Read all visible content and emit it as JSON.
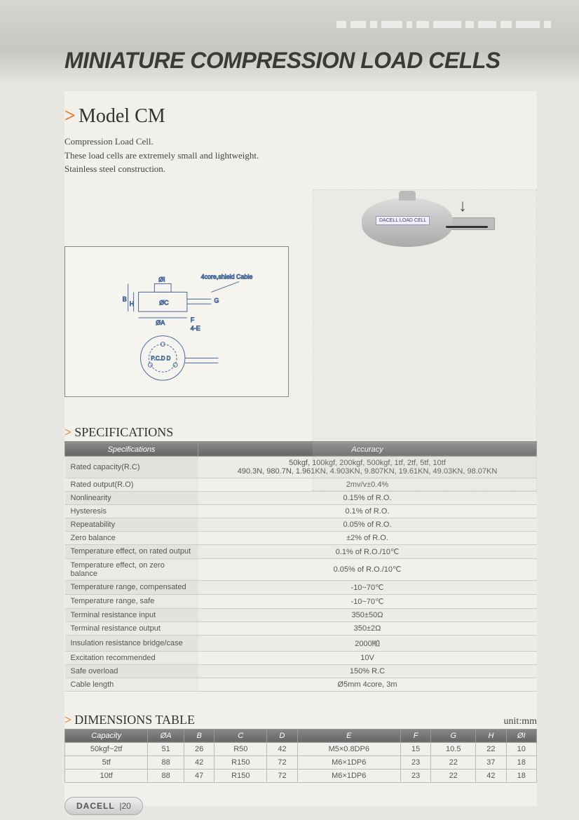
{
  "page_title": "MINIATURE COMPRESSION LOAD CELLS",
  "model": {
    "name": "Model CM",
    "desc_lines": [
      "Compression Load Cell.",
      "These load cells are extremely small and lightweight.",
      "Stainless steel construction."
    ]
  },
  "diagram": {
    "cable_label": "4core,shield Cable",
    "labels": [
      "ØI",
      "B",
      "H",
      "ØC",
      "G",
      "ØA",
      "F",
      "4-E",
      "P.C.D D"
    ]
  },
  "product_label": "DACELL  LOAD CELL",
  "spec_section_title": "SPECIFICATIONS",
  "spec_headers": [
    "Specifications",
    "Accuracy"
  ],
  "spec_rows": [
    {
      "label": "Rated capacity(R.C)",
      "value_lines": [
        "50kgf, 100kgf, 200kgf, 500kgf, 1tf, 2tf, 5tf, 10tf",
        "490.3N, 980.7N, 1.961KN, 4.903KN, 9.807KN, 19.61KN, 49.03KN, 98.07KN"
      ]
    },
    {
      "label": "Rated output(R.O)",
      "value": "2mv/v±0.4%"
    },
    {
      "label": "Nonlinearity",
      "value": "0.15% of R.O."
    },
    {
      "label": "Hysteresis",
      "value": "0.1% of R.O."
    },
    {
      "label": "Repeatability",
      "value": "0.05% of R.O."
    },
    {
      "label": "Zero balance",
      "value": "±2% of R.O."
    },
    {
      "label": "Temperature effect, on rated output",
      "value": "0.1% of R.O./10℃"
    },
    {
      "label": "Temperature effect, on zero balance",
      "value": "0.05% of R.O./10℃"
    },
    {
      "label": "Temperature range, compensated",
      "value": "-10~70℃"
    },
    {
      "label": "Temperature range, safe",
      "value": "-10~70℃"
    },
    {
      "label": "Terminal resistance input",
      "value": "350±50Ω"
    },
    {
      "label": "Terminal resistance output",
      "value": "350±2Ω"
    },
    {
      "label": "Insulation resistance bridge/case",
      "value": "2000㏁"
    },
    {
      "label": "Excitation recommended",
      "value": "10V"
    },
    {
      "label": "Safe overload",
      "value": "150% R.C"
    },
    {
      "label": "Cable length",
      "value": "Ø5mm 4core, 3m"
    }
  ],
  "dim_section_title": "DIMENSIONS TABLE",
  "dim_unit": "unit:mm",
  "dim_headers": [
    "Capacity",
    "ØA",
    "B",
    "C",
    "D",
    "E",
    "F",
    "G",
    "H",
    "ØI"
  ],
  "dim_rows": [
    [
      "50kgf~2tf",
      "51",
      "26",
      "R50",
      "42",
      "M5×0.8DP6",
      "15",
      "10.5",
      "22",
      "10"
    ],
    [
      "5tf",
      "88",
      "42",
      "R150",
      "72",
      "M6×1DP6",
      "23",
      "22",
      "37",
      "18"
    ],
    [
      "10tf",
      "88",
      "47",
      "R150",
      "72",
      "M6×1DP6",
      "23",
      "22",
      "42",
      "18"
    ]
  ],
  "footer": {
    "brand": "DACELL",
    "page": "20"
  },
  "colors": {
    "page_bg": "#e8e6e0",
    "content_bg": "#f2f0ea",
    "chevron": "#e08030",
    "th_grad_top": "#888888",
    "th_grad_bot": "#666666",
    "th_text": "#ffffff",
    "text": "#555555",
    "border": "#bbbbbb"
  }
}
